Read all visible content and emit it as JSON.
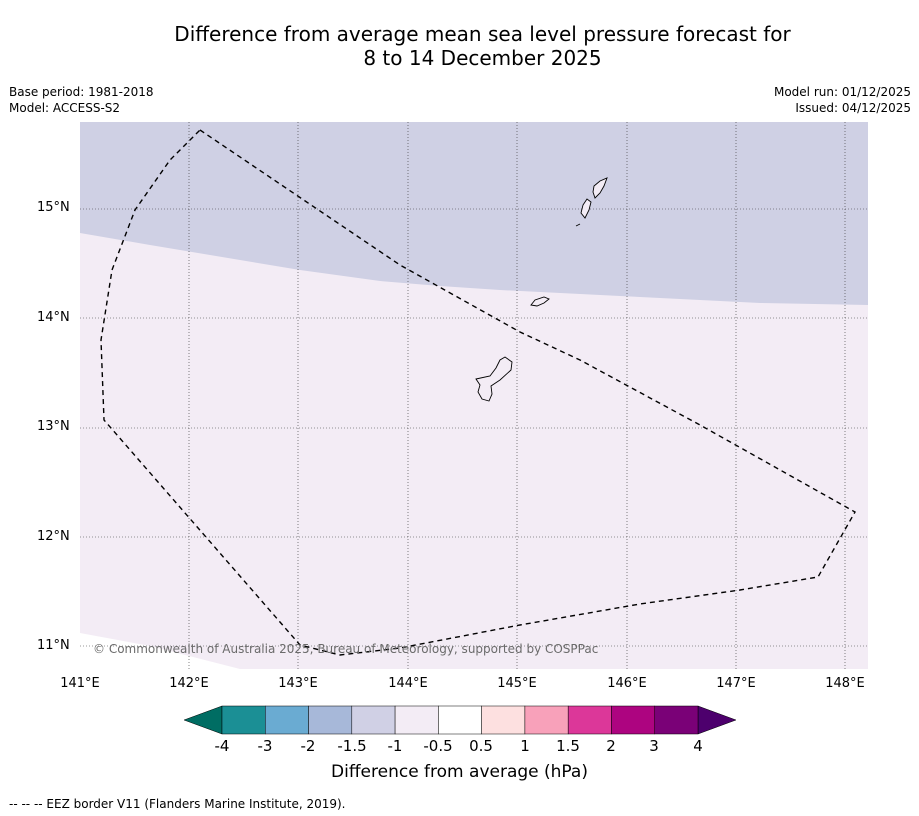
{
  "title": {
    "line1": "Difference from average mean sea level pressure forecast for",
    "line2": "8 to 14 December 2025"
  },
  "meta": {
    "base_period": "Base period: 1981-2018",
    "model": "Model: ACCESS-S2",
    "model_run": "Model run: 01/12/2025",
    "issued": "Issued: 04/12/2025"
  },
  "map": {
    "lat_labels": [
      "15°N",
      "14°N",
      "13°N",
      "12°N",
      "11°N"
    ],
    "lon_labels": [
      "141°E",
      "142°E",
      "143°E",
      "144°E",
      "145°E",
      "146°E",
      "147°E",
      "148°E"
    ],
    "copyright": "© Commonwealth of Australia 2025, Bureau of Meteorology, supported by COSPPac",
    "region_colors": {
      "upper_band": "#cfd0e4",
      "lower_band": "#f3ecf5"
    }
  },
  "colorbar": {
    "title": "Difference from average (hPa)",
    "ticks": [
      "-4",
      "-3",
      "-2",
      "-1.5",
      "-1",
      "-0.5",
      "0.5",
      "1",
      "1.5",
      "2",
      "3",
      "4"
    ],
    "colors": [
      "#1b8f95",
      "#6aabd2",
      "#a7b8d9",
      "#d0d0e5",
      "#f3ecf5",
      "#ffffff",
      "#fde0e0",
      "#f8a1ba",
      "#dc3799",
      "#ad0480",
      "#7a0177"
    ],
    "under_color": "#006d63",
    "over_color": "#4d006d"
  },
  "footer": {
    "legend": "--  --  -- EEZ border V11 (Flanders Marine Institute, 2019)."
  }
}
